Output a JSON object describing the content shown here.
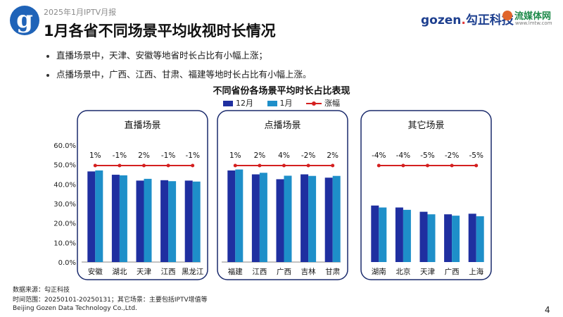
{
  "header": {
    "report_label": "2025年1月IPTV月报",
    "title": "1月各省不同场景平均收视时长情况",
    "brand1_main": "gozen",
    "brand1_accent": ".",
    "brand1_cn": "勾正科技",
    "brand2_name": "流媒体网",
    "brand2_url": "www.lmtw.com"
  },
  "bullets": [
    "直播场景中，天津、安徽等地省时长占比有小幅上涨；",
    "点播场景中，广西、江西、甘肃、福建等地时长占比有小幅上涨。"
  ],
  "footer": {
    "source": "数据来源：勾正科技",
    "range": "时间范围：20250101-20250131；其它场景：主要包括IPTV增值等",
    "company": "Beijing Gozen Data Technology Co.,Ltd.",
    "page": "4"
  },
  "colors": {
    "dec": "#1f2fa0",
    "jan": "#1e8fc9",
    "growth": "#d42020",
    "panel_border": "#1a2a6c"
  },
  "chart_data": {
    "type": "bar",
    "title": "不同省份各场景平均时长占比表现",
    "legend": [
      "12月",
      "1月",
      "涨幅"
    ],
    "y_ticks": [
      "60.0%",
      "50.0%",
      "40.0%",
      "30.0%",
      "20.0%",
      "10.0%",
      "0.0%"
    ],
    "ylim": [
      0,
      60
    ],
    "panels": [
      {
        "title": "直播场景",
        "categories": [
          "安徽",
          "湖北",
          "天津",
          "江西",
          "黑龙江"
        ],
        "series": [
          {
            "name": "12月",
            "values": [
              46.5,
              44.8,
              41.8,
              42.0,
              41.8
            ]
          },
          {
            "name": "1月",
            "values": [
              47.0,
              44.5,
              42.7,
              41.5,
              41.3
            ]
          }
        ],
        "growth_labels": [
          "1%",
          "-1%",
          "2%",
          "-1%",
          "-1%"
        ]
      },
      {
        "title": "点播场景",
        "categories": [
          "福建",
          "江西",
          "广西",
          "吉林",
          "甘肃"
        ],
        "series": [
          {
            "name": "12月",
            "values": [
              47.0,
              45.0,
              42.5,
              45.0,
              43.3
            ]
          },
          {
            "name": "1月",
            "values": [
              47.5,
              45.8,
              44.3,
              44.2,
              44.2
            ]
          }
        ],
        "growth_labels": [
          "1%",
          "2%",
          "4%",
          "-2%",
          "2%"
        ]
      },
      {
        "title": "其它场景",
        "categories": [
          "湖南",
          "北京",
          "天津",
          "广西",
          "上海"
        ],
        "series": [
          {
            "name": "12月",
            "values": [
              29.0,
              28.0,
              25.8,
              24.5,
              24.8
            ]
          },
          {
            "name": "1月",
            "values": [
              28.0,
              26.8,
              24.5,
              23.8,
              23.5
            ]
          }
        ],
        "growth_labels": [
          "-4%",
          "-4%",
          "-5%",
          "-2%",
          "-5%"
        ]
      }
    ]
  }
}
